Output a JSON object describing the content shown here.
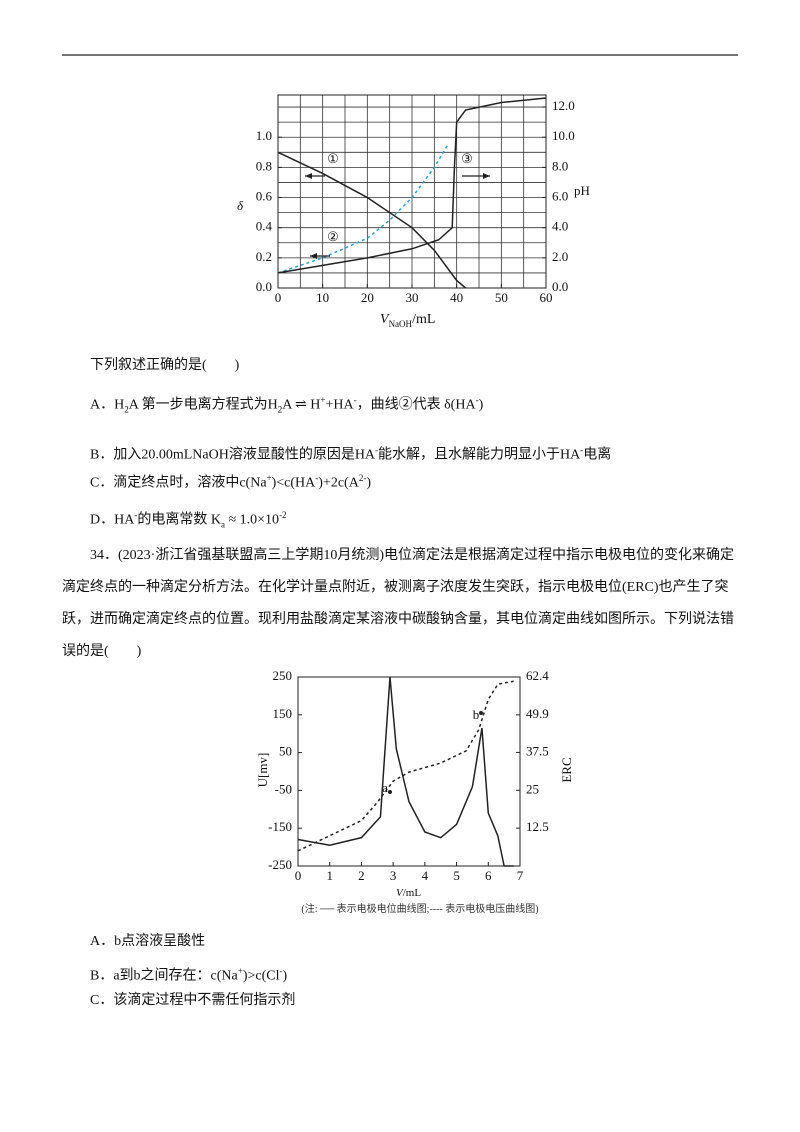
{
  "figure1": {
    "type": "line",
    "xlim": [
      0,
      60
    ],
    "xticks": [
      0,
      10,
      20,
      30,
      40,
      50,
      60
    ],
    "ylim": [
      0,
      1.28
    ],
    "yticks": [
      {
        "value": 0,
        "label": "0.0"
      },
      {
        "value": 0.2,
        "label": "0.2"
      },
      {
        "value": 0.4,
        "label": "0.4"
      },
      {
        "value": 0.6,
        "label": "0.6"
      },
      {
        "value": 0.8,
        "label": "0.8"
      },
      {
        "value": 1.0,
        "label": "1.0"
      }
    ],
    "y2lim": [
      0,
      12.8
    ],
    "y2ticks": [
      {
        "value": 0,
        "label": "0.0"
      },
      {
        "value": 2,
        "label": "2.0"
      },
      {
        "value": 4,
        "label": "4.0"
      },
      {
        "value": 6,
        "label": "6.0"
      },
      {
        "value": 8,
        "label": "8.0"
      },
      {
        "value": 10,
        "label": "10.0"
      },
      {
        "value": 12,
        "label": "12.0"
      }
    ],
    "ylabel": "δ",
    "y2label": "pH",
    "xlabel": [
      {
        "t": "V",
        "s": "i"
      },
      {
        "t": "NaOH",
        "s": "sub"
      },
      {
        "t": "/mL"
      }
    ],
    "series": [
      {
        "name": "①",
        "color": "#222222",
        "dash": false,
        "x": [
          0,
          10,
          20,
          30,
          35,
          40,
          42
        ],
        "values": [
          0.9,
          0.76,
          0.6,
          0.4,
          0.25,
          0.05,
          0
        ]
      },
      {
        "name": "②",
        "color": "#2a9fd8",
        "dash": true,
        "x": [
          0,
          10,
          20,
          25,
          30,
          35,
          38
        ],
        "values": [
          0.1,
          0.2,
          0.33,
          0.45,
          0.6,
          0.8,
          0.95
        ]
      },
      {
        "name": "③",
        "color": "#222222",
        "dash": false,
        "axis": "y2",
        "x": [
          0,
          10,
          20,
          30,
          36,
          39,
          39.5,
          40,
          42,
          50,
          60
        ],
        "values": [
          1.0,
          1.5,
          2.0,
          2.6,
          3.2,
          4.0,
          8.0,
          11.0,
          11.8,
          12.3,
          12.6
        ]
      }
    ]
  },
  "question33": {
    "intro": "下列叙述正确的是(　　)",
    "options": [
      [
        {
          "t": "A．H"
        },
        {
          "t": "2",
          "s": "sub"
        },
        {
          "t": "A 第一步电离方程式为H"
        },
        {
          "t": "2",
          "s": "sub"
        },
        {
          "t": "A ⇌ H"
        },
        {
          "t": "+",
          "s": "sup"
        },
        {
          "t": "+HA"
        },
        {
          "t": "-",
          "s": "sup"
        },
        {
          "t": "，曲线②代表 δ(HA"
        },
        {
          "t": "-",
          "s": "sup"
        },
        {
          "t": ")"
        }
      ],
      [
        {
          "t": "B．加入20.00mLNaOH溶液显酸性的原因是HA"
        },
        {
          "t": "-",
          "s": "sup"
        },
        {
          "t": "能水解，且水解能力明显小于HA"
        },
        {
          "t": "-",
          "s": "sup"
        },
        {
          "t": "电离"
        }
      ],
      [
        {
          "t": "C．滴定终点时，溶液中c(Na"
        },
        {
          "t": "+",
          "s": "sup"
        },
        {
          "t": ")<c(HA"
        },
        {
          "t": "-",
          "s": "sup"
        },
        {
          "t": ")+2c(A"
        },
        {
          "t": "2-",
          "s": "sup"
        },
        {
          "t": ")"
        }
      ],
      [
        {
          "t": "D．HA"
        },
        {
          "t": "-",
          "s": "sup"
        },
        {
          "t": "的电离常数 K"
        },
        {
          "t": "a",
          "s": "sub"
        },
        {
          "t": " ≈ 1.0×10"
        },
        {
          "t": "-2",
          "s": "sup"
        }
      ]
    ]
  },
  "question34": {
    "stem": "34．(2023·浙江省强基联盟高三上学期10月统测)电位滴定法是根据滴定过程中指示电极电位的变化来确定滴定终点的一种滴定分析方法。在化学计量点附近，被测离子浓度发生突跃，指示电极电位(ERC)也产生了突跃，进而确定滴定终点的位置。现利用盐酸滴定某溶液中碳酸钠含量，其电位滴定曲线如图所示。下列说法错误的是(　　)",
    "options": [
      [
        {
          "t": "A．b点溶液呈酸性"
        }
      ],
      [
        {
          "t": "B．a到b之间存在：c(Na"
        },
        {
          "t": "+",
          "s": "sup"
        },
        {
          "t": ")>c(Cl"
        },
        {
          "t": "-",
          "s": "sup"
        },
        {
          "t": ")"
        }
      ],
      [
        {
          "t": "C．该滴定过程中不需任何指示剂"
        }
      ]
    ]
  },
  "figure2": {
    "type": "line",
    "xlim": [
      0,
      7
    ],
    "xticks": [
      0,
      1,
      2,
      3,
      4,
      5,
      6,
      7
    ],
    "ylim": [
      -250,
      250
    ],
    "yticks": [
      -250,
      -150,
      -50,
      50,
      150,
      250
    ],
    "y2lim": [
      0,
      62.4
    ],
    "y2ticks": [
      12.5,
      25,
      37.5,
      49.9,
      62.4
    ],
    "ylabel": "U[mv]",
    "y2label": "ERC",
    "xlabel": [
      {
        "t": "V",
        "s": "i"
      },
      {
        "t": "/mL"
      }
    ],
    "note": "(注: ── 表示电极电位曲线图;---- 表示电极电压曲线图)",
    "point_labels": [
      "a",
      "b"
    ],
    "series": [
      {
        "color": "#222222",
        "dash": false,
        "x": [
          0,
          1,
          2,
          2.6,
          2.9,
          3.1,
          3.5,
          4,
          4.5,
          5,
          5.5,
          5.8,
          6.0,
          6.3,
          6.5,
          6.8
        ],
        "values": [
          -180,
          -195,
          -175,
          -120,
          250,
          60,
          -80,
          -160,
          -175,
          -140,
          -40,
          115,
          -110,
          -170,
          -250,
          -250
        ]
      },
      {
        "color": "#222222",
        "dash": true,
        "axis": "y2",
        "x": [
          0,
          1,
          2,
          2.5,
          3,
          3.5,
          4.5,
          5.3,
          5.7,
          6.0,
          6.3,
          6.8
        ],
        "values": [
          5,
          10,
          15,
          21,
          28,
          31,
          34,
          38,
          45,
          55,
          60,
          61
        ]
      }
    ]
  }
}
